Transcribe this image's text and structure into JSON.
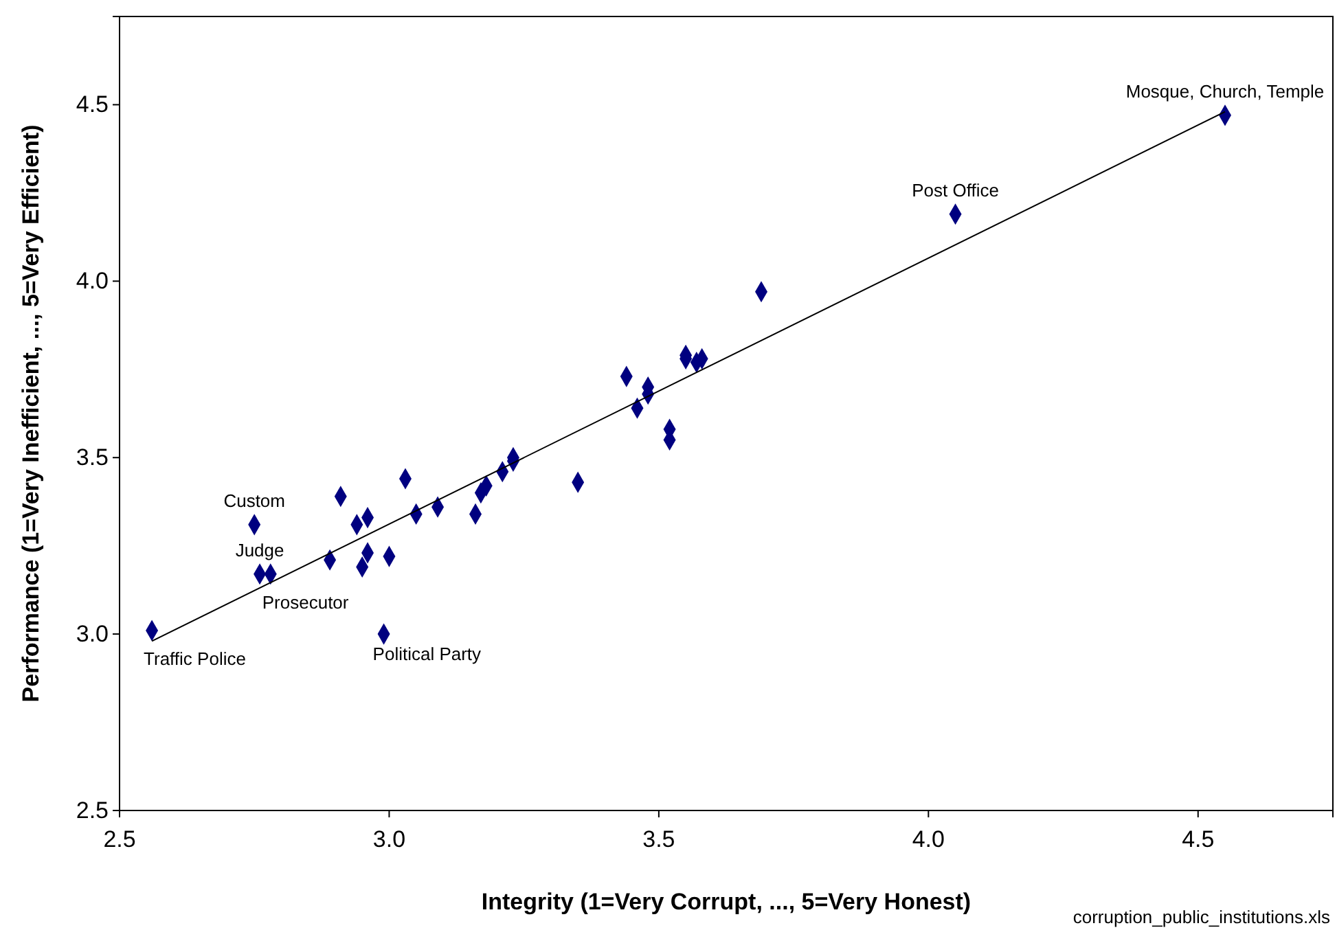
{
  "chart_data": {
    "type": "scatter",
    "xlabel": "Integrity (1=Very Corrupt, ..., 5=Very Honest)",
    "ylabel": "Performance (1=Very Inefficient, ..., 5=Very Efficient)",
    "xlim": [
      2.5,
      4.75
    ],
    "ylim": [
      2.5,
      4.75
    ],
    "xticks": [
      {
        "value": 2.5,
        "label": "2.5"
      },
      {
        "value": 3,
        "label": "3.0"
      },
      {
        "value": 3.5,
        "label": "3.5"
      },
      {
        "value": 4,
        "label": "4.0"
      },
      {
        "value": 4.5,
        "label": "4.5"
      }
    ],
    "yticks": [
      {
        "value": 2.5,
        "label": "2.5"
      },
      {
        "value": 3,
        "label": "3.0"
      },
      {
        "value": 3.5,
        "label": "3.5"
      },
      {
        "value": 4,
        "label": "4.0"
      },
      {
        "value": 4.5,
        "label": "4.5"
      }
    ],
    "grid": false,
    "marker": "diamond",
    "series": [
      {
        "color": "#000080",
        "x": [
          2.56,
          2.75,
          2.76,
          2.78,
          2.89,
          2.91,
          2.94,
          2.95,
          2.96,
          2.96,
          2.99,
          3.0,
          3.03,
          3.05,
          3.09,
          3.16,
          3.17,
          3.18,
          3.21,
          3.23,
          3.23,
          3.35,
          3.44,
          3.46,
          3.48,
          3.48,
          3.52,
          3.52,
          3.55,
          3.55,
          3.57,
          3.58,
          3.69,
          4.05,
          4.55
        ],
        "values": [
          3.01,
          3.31,
          3.17,
          3.17,
          3.21,
          3.39,
          3.31,
          3.19,
          3.33,
          3.23,
          3.0,
          3.22,
          3.44,
          3.34,
          3.36,
          3.34,
          3.4,
          3.42,
          3.46,
          3.49,
          3.5,
          3.43,
          3.73,
          3.64,
          3.68,
          3.7,
          3.58,
          3.55,
          3.79,
          3.78,
          3.77,
          3.78,
          3.97,
          4.19,
          4.47
        ]
      },
      {
        "type": "line",
        "color": "#000000",
        "marker": "none",
        "line_style": "solid",
        "x": [
          2.56,
          4.55
        ],
        "values": [
          2.98,
          4.48
        ]
      }
    ],
    "annotations": [
      {
        "text": "Traffic Police",
        "x": 2.56,
        "y": 3.01
      },
      {
        "text": "Custom",
        "x": 2.75,
        "y": 3.31
      },
      {
        "text": "Judge",
        "x": 2.76,
        "y": 3.17
      },
      {
        "text": "Prosecutor",
        "x": 2.78,
        "y": 3.17
      },
      {
        "text": "Political Party",
        "x": 2.99,
        "y": 3.0
      },
      {
        "text": "Post Office",
        "x": 4.05,
        "y": 4.19
      },
      {
        "text": "Mosque, Church, Temple",
        "x": 4.55,
        "y": 4.47
      },
      "corruption_public_institutions.xls"
    ]
  }
}
